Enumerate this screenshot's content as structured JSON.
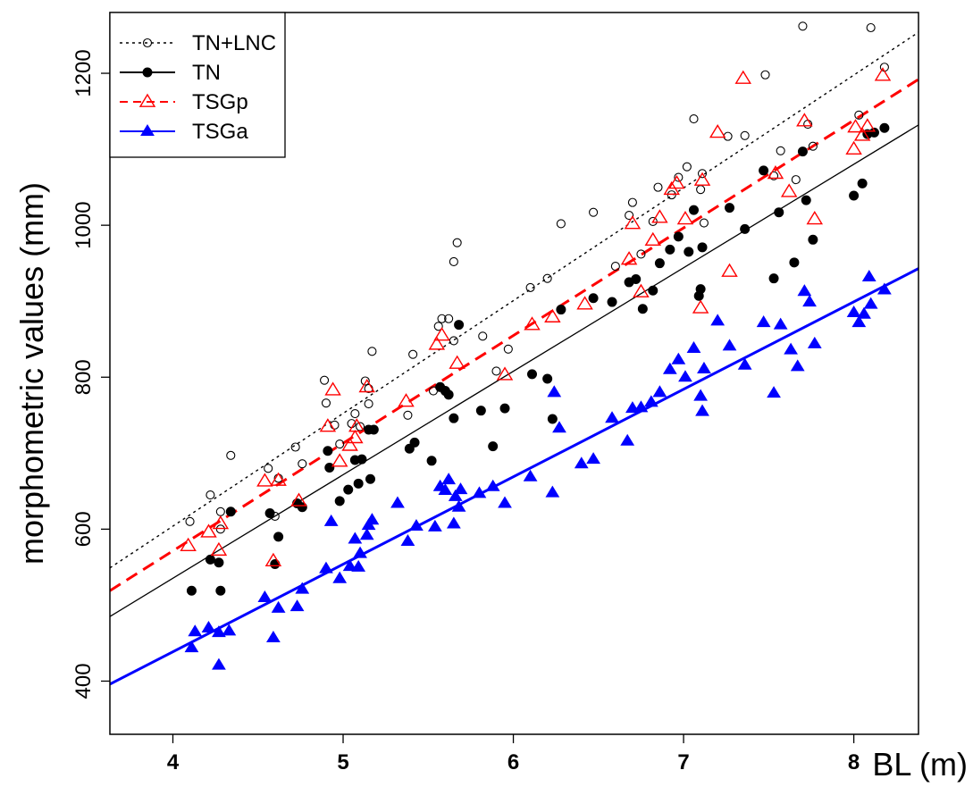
{
  "chart_data": {
    "type": "scatter",
    "title": "",
    "xlabel": "BL (m)",
    "ylabel": "morphometric values (mm)",
    "xlim": [
      3.63,
      8.38
    ],
    "ylim": [
      330,
      1280
    ],
    "xticks": [
      4,
      5,
      6,
      7,
      8
    ],
    "yticks": [
      400,
      600,
      800,
      1000,
      1200
    ],
    "legend_position": "top-left",
    "series": [
      {
        "name": "TN+LNC",
        "color": "#000000",
        "marker": "open-circle",
        "line_style": "dotted",
        "fit": {
          "x": [
            3.63,
            8.38
          ],
          "y": [
            549,
            1254
          ]
        },
        "points": [
          [
            4.1,
            610
          ],
          [
            4.22,
            645
          ],
          [
            4.28,
            600
          ],
          [
            4.28,
            623
          ],
          [
            4.34,
            697
          ],
          [
            4.56,
            680
          ],
          [
            4.6,
            617
          ],
          [
            4.62,
            667
          ],
          [
            4.72,
            708
          ],
          [
            4.76,
            686
          ],
          [
            4.89,
            796
          ],
          [
            4.9,
            766
          ],
          [
            4.95,
            737
          ],
          [
            4.98,
            712
          ],
          [
            5.05,
            739
          ],
          [
            5.07,
            752
          ],
          [
            5.1,
            735
          ],
          [
            5.13,
            795
          ],
          [
            5.15,
            785
          ],
          [
            5.15,
            765
          ],
          [
            5.17,
            834
          ],
          [
            5.38,
            750
          ],
          [
            5.41,
            830
          ],
          [
            5.53,
            782
          ],
          [
            5.56,
            867
          ],
          [
            5.58,
            877
          ],
          [
            5.62,
            877
          ],
          [
            5.65,
            952
          ],
          [
            5.65,
            848
          ],
          [
            5.67,
            977
          ],
          [
            5.82,
            854
          ],
          [
            5.9,
            808
          ],
          [
            5.97,
            837
          ],
          [
            6.1,
            918
          ],
          [
            6.2,
            930
          ],
          [
            6.28,
            1002
          ],
          [
            6.47,
            1017
          ],
          [
            6.6,
            946
          ],
          [
            6.68,
            1013
          ],
          [
            6.7,
            1030
          ],
          [
            6.75,
            962
          ],
          [
            6.82,
            1005
          ],
          [
            6.85,
            1050
          ],
          [
            6.93,
            1040
          ],
          [
            6.97,
            1063
          ],
          [
            7.02,
            1077
          ],
          [
            7.06,
            1140
          ],
          [
            7.1,
            1047
          ],
          [
            7.11,
            1068
          ],
          [
            7.12,
            1003
          ],
          [
            7.26,
            1117
          ],
          [
            7.36,
            1118
          ],
          [
            7.48,
            1198
          ],
          [
            7.53,
            1065
          ],
          [
            7.57,
            1098
          ],
          [
            7.66,
            1060
          ],
          [
            7.7,
            1262
          ],
          [
            7.73,
            1133
          ],
          [
            7.76,
            1104
          ],
          [
            8.03,
            1145
          ],
          [
            8.1,
            1260
          ],
          [
            8.18,
            1208
          ]
        ]
      },
      {
        "name": "TN",
        "color": "#000000",
        "marker": "filled-circle",
        "line_style": "solid",
        "fit": {
          "x": [
            3.63,
            8.38
          ],
          "y": [
            485,
            1132
          ]
        },
        "points": [
          [
            4.11,
            519
          ],
          [
            4.22,
            560
          ],
          [
            4.27,
            556
          ],
          [
            4.28,
            519
          ],
          [
            4.34,
            623
          ],
          [
            4.57,
            621
          ],
          [
            4.6,
            554
          ],
          [
            4.62,
            590
          ],
          [
            4.73,
            634
          ],
          [
            4.76,
            629
          ],
          [
            4.91,
            703
          ],
          [
            4.92,
            681
          ],
          [
            4.98,
            637
          ],
          [
            5.03,
            652
          ],
          [
            5.07,
            691
          ],
          [
            5.09,
            660
          ],
          [
            5.11,
            692
          ],
          [
            5.15,
            731
          ],
          [
            5.16,
            666
          ],
          [
            5.18,
            731
          ],
          [
            5.39,
            706
          ],
          [
            5.42,
            714
          ],
          [
            5.52,
            690
          ],
          [
            5.57,
            787
          ],
          [
            5.6,
            782
          ],
          [
            5.62,
            777
          ],
          [
            5.65,
            746
          ],
          [
            5.68,
            869
          ],
          [
            5.81,
            756
          ],
          [
            5.88,
            709
          ],
          [
            5.95,
            759
          ],
          [
            6.11,
            804
          ],
          [
            6.2,
            798
          ],
          [
            6.23,
            745
          ],
          [
            6.28,
            889
          ],
          [
            6.47,
            904
          ],
          [
            6.58,
            899
          ],
          [
            6.68,
            925
          ],
          [
            6.72,
            929
          ],
          [
            6.76,
            890
          ],
          [
            6.82,
            914
          ],
          [
            6.86,
            950
          ],
          [
            6.92,
            968
          ],
          [
            6.97,
            985
          ],
          [
            7.03,
            965
          ],
          [
            7.06,
            1020
          ],
          [
            7.09,
            907
          ],
          [
            7.1,
            916
          ],
          [
            7.11,
            971
          ],
          [
            7.27,
            1023
          ],
          [
            7.36,
            995
          ],
          [
            7.47,
            1072
          ],
          [
            7.53,
            930
          ],
          [
            7.56,
            1017
          ],
          [
            7.65,
            951
          ],
          [
            7.7,
            1097
          ],
          [
            7.72,
            1033
          ],
          [
            7.76,
            981
          ],
          [
            8.0,
            1039
          ],
          [
            8.05,
            1055
          ],
          [
            8.08,
            1120
          ],
          [
            8.12,
            1122
          ],
          [
            8.18,
            1128
          ]
        ]
      },
      {
        "name": "TSGp",
        "color": "#ff0000",
        "marker": "open-triangle",
        "line_style": "dashed",
        "fit": {
          "x": [
            3.63,
            8.38
          ],
          "y": [
            519,
            1192
          ]
        },
        "points": [
          [
            4.09,
            578
          ],
          [
            4.21,
            596
          ],
          [
            4.27,
            572
          ],
          [
            4.28,
            607
          ],
          [
            4.54,
            663
          ],
          [
            4.59,
            558
          ],
          [
            4.62,
            664
          ],
          [
            4.74,
            637
          ],
          [
            4.91,
            735
          ],
          [
            4.94,
            783
          ],
          [
            4.98,
            689
          ],
          [
            5.04,
            710
          ],
          [
            5.07,
            720
          ],
          [
            5.08,
            735
          ],
          [
            5.14,
            787
          ],
          [
            5.37,
            768
          ],
          [
            5.55,
            843
          ],
          [
            5.58,
            855
          ],
          [
            5.67,
            818
          ],
          [
            5.95,
            803
          ],
          [
            6.11,
            869
          ],
          [
            6.23,
            879
          ],
          [
            6.42,
            896
          ],
          [
            6.68,
            955
          ],
          [
            6.7,
            1002
          ],
          [
            6.75,
            912
          ],
          [
            6.82,
            980
          ],
          [
            6.86,
            1010
          ],
          [
            6.93,
            1047
          ],
          [
            6.96,
            1055
          ],
          [
            7.01,
            1008
          ],
          [
            7.1,
            891
          ],
          [
            7.11,
            1059
          ],
          [
            7.2,
            1122
          ],
          [
            7.27,
            939
          ],
          [
            7.35,
            1193
          ],
          [
            7.54,
            1068
          ],
          [
            7.62,
            1044
          ],
          [
            7.71,
            1137
          ],
          [
            7.77,
            1008
          ],
          [
            8.0,
            1100
          ],
          [
            8.01,
            1129
          ],
          [
            8.05,
            1118
          ],
          [
            8.08,
            1130
          ],
          [
            8.17,
            1197
          ]
        ]
      },
      {
        "name": "TSGa",
        "color": "#0000ff",
        "marker": "filled-triangle",
        "line_style": "solid",
        "fit": {
          "x": [
            3.63,
            8.38
          ],
          "y": [
            396,
            943
          ]
        },
        "points": [
          [
            4.11,
            444
          ],
          [
            4.13,
            465
          ],
          [
            4.21,
            470
          ],
          [
            4.27,
            464
          ],
          [
            4.27,
            421
          ],
          [
            4.33,
            466
          ],
          [
            4.54,
            510
          ],
          [
            4.59,
            457
          ],
          [
            4.62,
            496
          ],
          [
            4.73,
            498
          ],
          [
            4.76,
            521
          ],
          [
            4.9,
            548
          ],
          [
            4.93,
            610
          ],
          [
            4.98,
            535
          ],
          [
            5.04,
            551
          ],
          [
            5.07,
            587
          ],
          [
            5.09,
            550
          ],
          [
            5.1,
            568
          ],
          [
            5.14,
            592
          ],
          [
            5.15,
            605
          ],
          [
            5.17,
            612
          ],
          [
            5.32,
            634
          ],
          [
            5.38,
            584
          ],
          [
            5.43,
            604
          ],
          [
            5.54,
            603
          ],
          [
            5.57,
            656
          ],
          [
            5.6,
            651
          ],
          [
            5.62,
            665
          ],
          [
            5.65,
            607
          ],
          [
            5.66,
            643
          ],
          [
            5.68,
            629
          ],
          [
            5.69,
            652
          ],
          [
            5.8,
            647
          ],
          [
            5.88,
            656
          ],
          [
            5.95,
            634
          ],
          [
            6.1,
            669
          ],
          [
            6.23,
            648
          ],
          [
            6.24,
            780
          ],
          [
            6.27,
            733
          ],
          [
            6.4,
            686
          ],
          [
            6.47,
            692
          ],
          [
            6.58,
            746
          ],
          [
            6.67,
            716
          ],
          [
            6.7,
            759
          ],
          [
            6.75,
            760
          ],
          [
            6.81,
            767
          ],
          [
            6.86,
            780
          ],
          [
            6.92,
            810
          ],
          [
            6.97,
            823
          ],
          [
            7.01,
            800
          ],
          [
            7.06,
            838
          ],
          [
            7.1,
            775
          ],
          [
            7.11,
            755
          ],
          [
            7.12,
            811
          ],
          [
            7.2,
            874
          ],
          [
            7.27,
            841
          ],
          [
            7.36,
            816
          ],
          [
            7.47,
            872
          ],
          [
            7.53,
            779
          ],
          [
            7.57,
            869
          ],
          [
            7.63,
            836
          ],
          [
            7.67,
            814
          ],
          [
            7.71,
            913
          ],
          [
            7.74,
            899
          ],
          [
            7.77,
            844
          ],
          [
            8.0,
            885
          ],
          [
            8.03,
            872
          ],
          [
            8.06,
            883
          ],
          [
            8.09,
            932
          ],
          [
            8.1,
            896
          ],
          [
            8.18,
            915
          ]
        ]
      }
    ]
  }
}
